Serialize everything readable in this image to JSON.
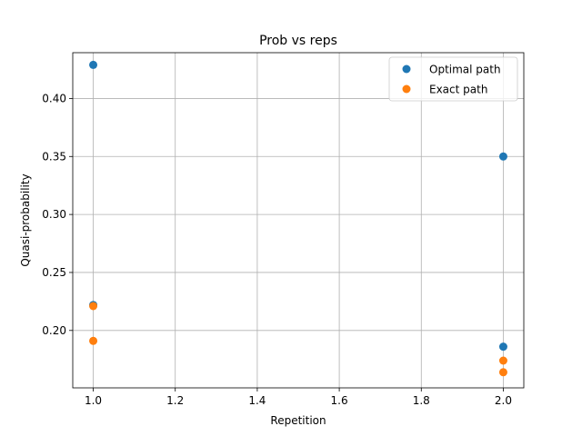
{
  "chart_data": {
    "type": "scatter",
    "title": "Prob vs reps",
    "xlabel": "Repetition",
    "ylabel": "Quasi-probability",
    "xlim": [
      0.95,
      2.05
    ],
    "ylim": [
      0.1505,
      0.4395
    ],
    "xticks": [
      1.0,
      1.2,
      1.4,
      1.6,
      1.8,
      2.0
    ],
    "xtick_labels": [
      "1.0",
      "1.2",
      "1.4",
      "1.6",
      "1.8",
      "2.0"
    ],
    "yticks": [
      0.2,
      0.25,
      0.3,
      0.35,
      0.4
    ],
    "ytick_labels": [
      "0.20",
      "0.25",
      "0.30",
      "0.35",
      "0.40"
    ],
    "grid": true,
    "legend_position": "top-right",
    "series": [
      {
        "name": "Optimal path",
        "color": "#1f77b4",
        "points": [
          {
            "x": 1.0,
            "y": 0.429
          },
          {
            "x": 1.0,
            "y": 0.222
          },
          {
            "x": 2.0,
            "y": 0.35
          },
          {
            "x": 2.0,
            "y": 0.186
          }
        ]
      },
      {
        "name": "Exact path",
        "color": "#ff7f0e",
        "points": [
          {
            "x": 1.0,
            "y": 0.221
          },
          {
            "x": 1.0,
            "y": 0.191
          },
          {
            "x": 2.0,
            "y": 0.174
          },
          {
            "x": 2.0,
            "y": 0.164
          }
        ]
      }
    ]
  }
}
